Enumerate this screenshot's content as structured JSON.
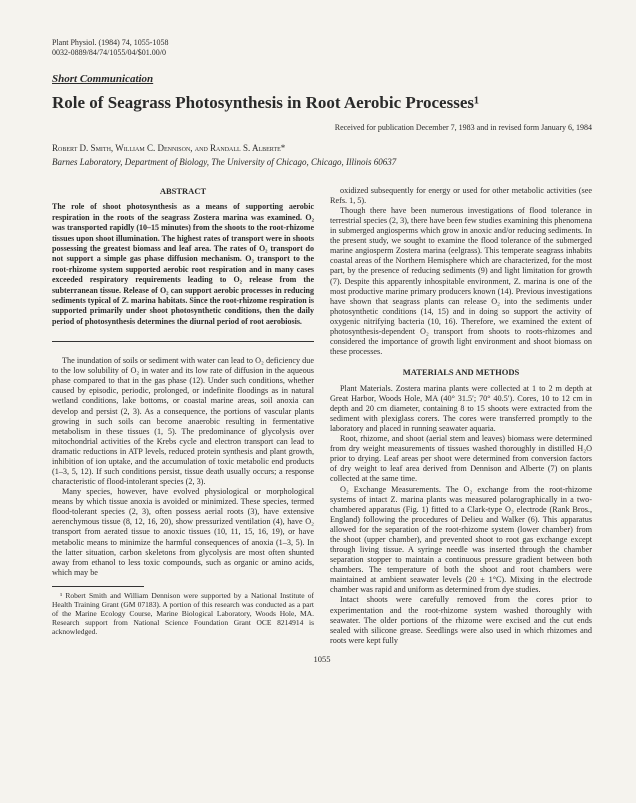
{
  "journal_line1": "Plant Physiol. (1984) 74, 1055-1058",
  "journal_line2": "0032-0889/84/74/1055/04/$01.00/0",
  "short_comm": "Short Communication",
  "title": "Role of Seagrass Photosynthesis in Root Aerobic Processes¹",
  "received": "Received for publication December 7, 1983 and in revised form January 6, 1984",
  "authors": "Robert D. Smith, William C. Dennison, and Randall S. Alberte*",
  "affiliation": "Barnes Laboratory, Department of Biology, The University of Chicago, Chicago, Illinois 60637",
  "abstract_head": "ABSTRACT",
  "abstract": "The role of shoot photosynthesis as a means of supporting aerobic respiration in the roots of the seagrass Zostera marina was examined. O₂ was transported rapidly (10–15 minutes) from the shoots to the root-rhizome tissues upon shoot illumination. The highest rates of transport were in shoots possessing the greatest biomass and leaf area. The rates of O₂ transport do not support a simple gas phase diffusion mechanism. O₂ transport to the root-rhizome system supported aerobic root respiration and in many cases exceeded respiratory requirements leading to O₂ release from the subterranean tissue. Release of O₂ can support aerobic processes in reducing sediments typical of Z. marina habitats. Since the root-rhizome respiration is supported primarily under shoot photosynthetic conditions, then the daily period of photosynthesis determines the diurnal period of root aerobiosis.",
  "left_p1": "The inundation of soils or sediment with water can lead to O₂ deficiency due to the low solubility of O₂ in water and its low rate of diffusion in the aqueous phase compared to that in the gas phase (12). Under such conditions, whether caused by episodic, periodic, prolonged, or indefinite floodings as in natural wetland conditions, lake bottoms, or coastal marine areas, soil anoxia can develop and persist (2, 3). As a consequence, the portions of vascular plants growing in such soils can become anaerobic resulting in fermentative metabolism in these tissues (1, 5). The predominance of glycolysis over mitochondrial activities of the Krebs cycle and electron transport can lead to dramatic reductions in ATP levels, reduced protein synthesis and plant growth, inhibition of ion uptake, and the accumulation of toxic metabolic end products (1–3, 5, 12). If such conditions persist, tissue death usually occurs; a response characteristic of flood-intolerant species (2, 3).",
  "left_p2": "Many species, however, have evolved physiological or morphological means by which tissue anoxia is avoided or minimized. These species, termed flood-tolerant species (2, 3), often possess aerial roots (3), have extensive aerenchymous tissue (8, 12, 16, 20), show pressurized ventilation (4), have O₂ transport from aerated tissue to anoxic tissues (10, 11, 15, 16, 19), or have metabolic means to minimize the harmful consequences of anoxia (1–3, 5). In the latter situation, carbon skeletons from glycolysis are most often shunted away from ethanol to less toxic compounds, such as organic or amino acids, which may be",
  "footnote": "¹ Robert Smith and William Dennison were supported by a National Institute of Health Training Grant (GM 07183). A portion of this research was conducted as a part of the Marine Ecology Course, Marine Biological Laboratory, Woods Hole, MA. Research support from National Science Foundation Grant OCE 8214914 is acknowledged.",
  "right_p1": "oxidized subsequently for energy or used for other metabolic activities (see Refs. 1, 5).",
  "right_p2": "Though there have been numerous investigations of flood tolerance in terrestrial species (2, 3), there have been few studies examining this phenomena in submerged angiosperms which grow in anoxic and/or reducing sediments. In the present study, we sought to examine the flood tolerance of the submerged marine angiosperm Zostera marina (eelgrass). This temperate seagrass inhabits coastal areas of the Northern Hemisphere which are characterized, for the most part, by the presence of reducing sediments (9) and light limitation for growth (7). Despite this apparently inhospitable environment, Z. marina is one of the most productive marine primary producers known (14). Previous investigations have shown that seagrass plants can release O₂ into the sediments under photosynthetic conditions (14, 15) and in doing so support the activity of oxygenic nitrifying bacteria (10, 16). Therefore, we examined the extent of photosynthesis-dependent O₂ transport from shoots to roots-rhizomes and considered the importance of growth light environment and shoot biomass on these processes.",
  "methods_head": "MATERIALS AND METHODS",
  "right_p3": "Plant Materials. Zostera marina plants were collected at 1 to 2 m depth at Great Harbor, Woods Hole, MA (40° 31.5′; 70° 40.5′). Cores, 10 to 12 cm in depth and 20 cm diameter, containing 8 to 15 shoots were extracted from the sediment with plexiglass corers. The cores were transferred promptly to the laboratory and placed in running seawater aquaria.",
  "right_p4": "Root, rhizome, and shoot (aerial stem and leaves) biomass were determined from dry weight measurements of tissues washed thoroughly in distilled H₂O prior to drying. Leaf areas per shoot were determined from conversion factors of dry weight to leaf area derived from Dennison and Alberte (7) on plants collected at the same time.",
  "right_p5": "O₂ Exchange Measurements. The O₂ exchange from the root-rhizome systems of intact Z. marina plants was measured polarographically in a two-chambered apparatus (Fig. 1) fitted to a Clark-type O₂ electrode (Rank Bros., England) following the procedures of Delieu and Walker (6). This apparatus allowed for the separation of the root-rhizome system (lower chamber) from the shoot (upper chamber), and prevented shoot to root gas exchange except through living tissue. A syringe needle was inserted through the chamber separation stopper to maintain a continuous pressure gradient between both chambers. The temperature of both the shoot and root chambers were maintained at ambient seawater levels (20 ± 1°C). Mixing in the electrode chamber was rapid and uniform as determined from dye studies.",
  "right_p6": "Intact shoots were carefully removed from the cores prior to experimentation and the root-rhizome system washed thoroughly with seawater. The older portions of the rhizome were excised and the cut ends sealed with silicone grease. Seedlings were also used in which rhizomes and roots were kept fully",
  "page_num": "1055"
}
